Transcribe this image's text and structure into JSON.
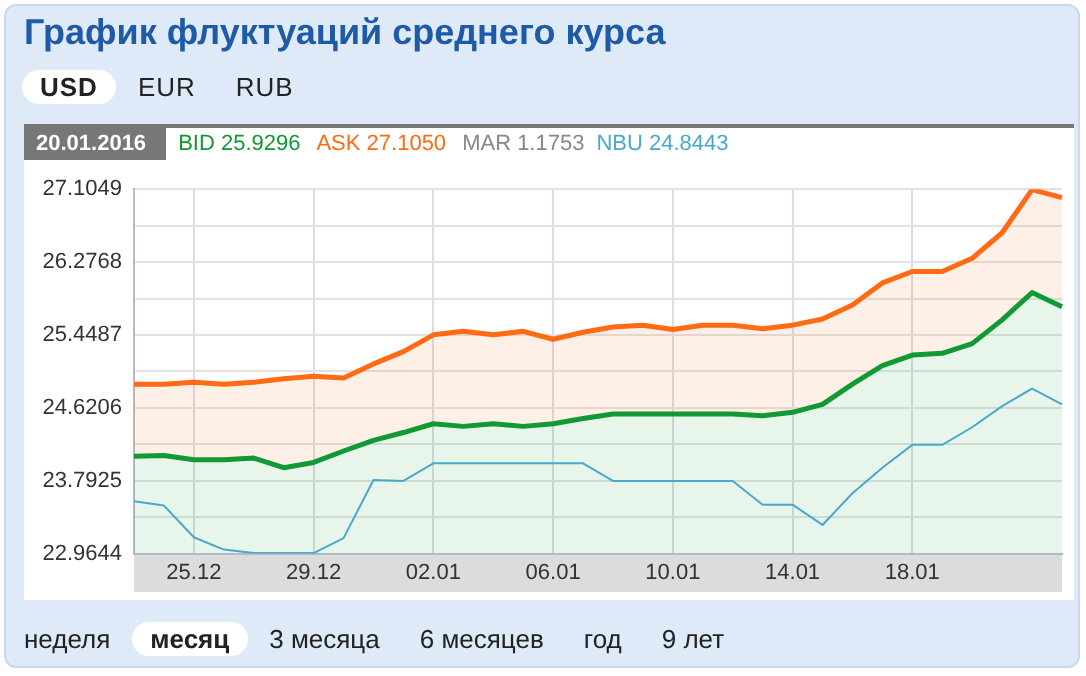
{
  "chart_data": {
    "type": "line",
    "title": "График флуктуаций среднего курса",
    "categories": [
      null,
      null,
      "25.12",
      null,
      null,
      null,
      "29.12",
      null,
      null,
      null,
      "02.01",
      null,
      null,
      null,
      "06.01",
      null,
      null,
      null,
      "10.01",
      null,
      null,
      null,
      "14.01",
      null,
      null,
      null,
      "18.01",
      null,
      null,
      null,
      null,
      null
    ],
    "series": [
      {
        "name": "ASK 27.1050",
        "type": "area",
        "color": "#ff6a13",
        "values": [
          24.89,
          24.89,
          24.91,
          24.89,
          24.91,
          24.95,
          24.98,
          24.96,
          25.12,
          25.26,
          25.45,
          25.49,
          25.45,
          25.49,
          25.4,
          25.48,
          25.54,
          25.56,
          25.51,
          25.56,
          25.56,
          25.52,
          25.56,
          25.63,
          25.79,
          26.04,
          26.17,
          26.17,
          26.32,
          26.61,
          27.1,
          27.01
        ]
      },
      {
        "name": "BID 25.9296",
        "type": "area",
        "color": "#119933",
        "values": [
          24.07,
          24.08,
          24.03,
          24.03,
          24.05,
          23.94,
          24.0,
          24.13,
          24.25,
          24.34,
          24.44,
          24.41,
          24.44,
          24.41,
          24.44,
          24.5,
          24.55,
          24.55,
          24.55,
          24.55,
          24.55,
          24.53,
          24.57,
          24.66,
          24.89,
          25.1,
          25.22,
          25.24,
          25.35,
          25.62,
          25.93,
          25.77
        ]
      },
      {
        "name": "NBU 24.8443",
        "color": "#4aa8cc",
        "values": [
          23.56,
          23.51,
          23.15,
          23.01,
          22.97,
          22.97,
          22.97,
          23.14,
          23.8,
          23.79,
          23.99,
          23.99,
          23.99,
          23.99,
          23.99,
          23.99,
          23.79,
          23.79,
          23.79,
          23.79,
          23.79,
          23.52,
          23.52,
          23.29,
          23.65,
          23.94,
          24.2,
          24.2,
          24.4,
          24.64,
          24.84,
          24.66
        ]
      }
    ],
    "ylim": [
      22.9644,
      27.1049
    ],
    "yticks": [
      22.9644,
      {
        "value": 23.3785,
        "label": null
      },
      23.7925,
      {
        "value": 24.2066,
        "label": null
      },
      24.6206,
      {
        "value": 25.0347,
        "label": null
      },
      25.4487,
      {
        "value": 25.8628,
        "label": null
      },
      26.2768,
      {
        "value": 26.6909,
        "label": null
      },
      27.1049
    ],
    "grid": true,
    "legend": "top left",
    "marker": "none",
    "annotations": [
      "USD",
      "EUR",
      "RUB",
      "20.01.2016",
      "MAR 1.1753",
      "неделя",
      "месяц",
      "3 месяца",
      "6 месяцев",
      "год",
      "9 лет"
    ]
  }
}
